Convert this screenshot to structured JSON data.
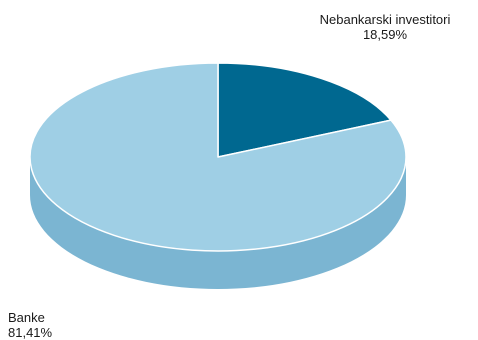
{
  "chart_data": {
    "type": "pie",
    "style": "3d",
    "title": "",
    "slices": [
      {
        "label": "Nebankarski investitori",
        "value": 18.59,
        "value_label": "18,59%",
        "color": "#006890",
        "side_color": "#005173"
      },
      {
        "label": "Banke",
        "value": 81.41,
        "value_label": "81,41%",
        "color": "#9fcfe5",
        "side_color": "#7bb5d2"
      }
    ]
  }
}
